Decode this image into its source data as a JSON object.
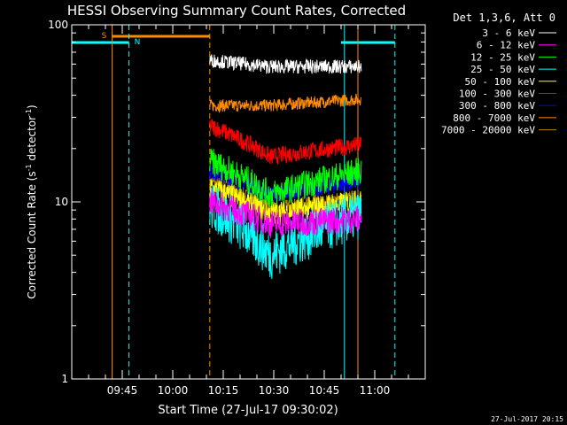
{
  "chart_data": {
    "type": "line",
    "title": "HESSI Observing Summary Count Rates, Corrected",
    "xlabel": "Start Time (27-Jul-17 09:30:02)",
    "ylabel_main": "Corrected Count Rate (s",
    "ylabel_sup1": "-1",
    "ylabel_mid": " detector",
    "ylabel_sup2": "-1",
    "ylabel_end": ")",
    "ylim": [
      1,
      100
    ],
    "yscale": "log",
    "xlim": [
      "09:30",
      "11:15"
    ],
    "x_ticks": [
      "09:45",
      "10:00",
      "10:15",
      "10:30",
      "10:45",
      "11:00"
    ],
    "y_ticks": [
      "1",
      "10",
      "100"
    ],
    "legend_title": "Det 1,3,6, Att 0",
    "legend_position": "top-right",
    "timestamp": "27-Jul-2017 20:15",
    "data_start": "10:11",
    "data_end": "10:56",
    "series": [
      {
        "name": "3 - 6 keV",
        "color": "#ffffff",
        "start": 63,
        "min": 58,
        "end": 58,
        "noise": 0.04
      },
      {
        "name": "6 - 12 keV",
        "color": "#ff00ff",
        "start": 10,
        "min": 7.5,
        "end": 8,
        "noise": 0.08
      },
      {
        "name": "12 - 25 keV",
        "color": "#00ff00",
        "start": 17,
        "min": 11,
        "end": 15,
        "noise": 0.08
      },
      {
        "name": "25 - 50 keV",
        "color": "#00ffff",
        "start": 9.5,
        "min": 5,
        "end": 8.5,
        "noise": 0.14
      },
      {
        "name": "50 - 100 keV",
        "color": "#ffff00",
        "start": 12,
        "min": 8.5,
        "end": 10,
        "noise": 0.07
      },
      {
        "name": "100 - 300 keV",
        "color": "#ff0000",
        "start": 27,
        "min": 18,
        "end": 21,
        "noise": 0.05
      },
      {
        "name": "300 - 800 keV",
        "color": "#0000ff",
        "start": 15,
        "min": 11,
        "end": 13,
        "noise": 0.05
      },
      {
        "name": "800 - 7000 keV",
        "color": "#ff8c00",
        "start": 35,
        "min": 35,
        "end": 38,
        "noise": 0.035
      },
      {
        "name": "7000 - 20000 keV",
        "color": "#b08000",
        "start": 13,
        "min": 9,
        "end": 10.5,
        "noise": 0.05
      }
    ],
    "flags": [
      {
        "label": "S",
        "color": "#ff8c00",
        "start": "09:42",
        "end": "10:11"
      },
      {
        "label": "N",
        "color": "#00ffff",
        "start": "09:30",
        "end": "09:47"
      },
      {
        "label": "",
        "color": "#00ffff",
        "start": "10:50",
        "end": "11:06"
      }
    ],
    "markers": [
      {
        "time": "09:42",
        "color": "#ff8c00",
        "style": "solid"
      },
      {
        "time": "09:47",
        "color": "#00ffff",
        "style": "dashed"
      },
      {
        "time": "10:11",
        "color": "#ff8c00",
        "style": "dashed"
      },
      {
        "time": "10:51",
        "color": "#00ffff",
        "style": "solid"
      },
      {
        "time": "10:55",
        "color": "#ff8c00",
        "style": "solid"
      },
      {
        "time": "11:06",
        "color": "#00ffff",
        "style": "dashed"
      }
    ]
  }
}
